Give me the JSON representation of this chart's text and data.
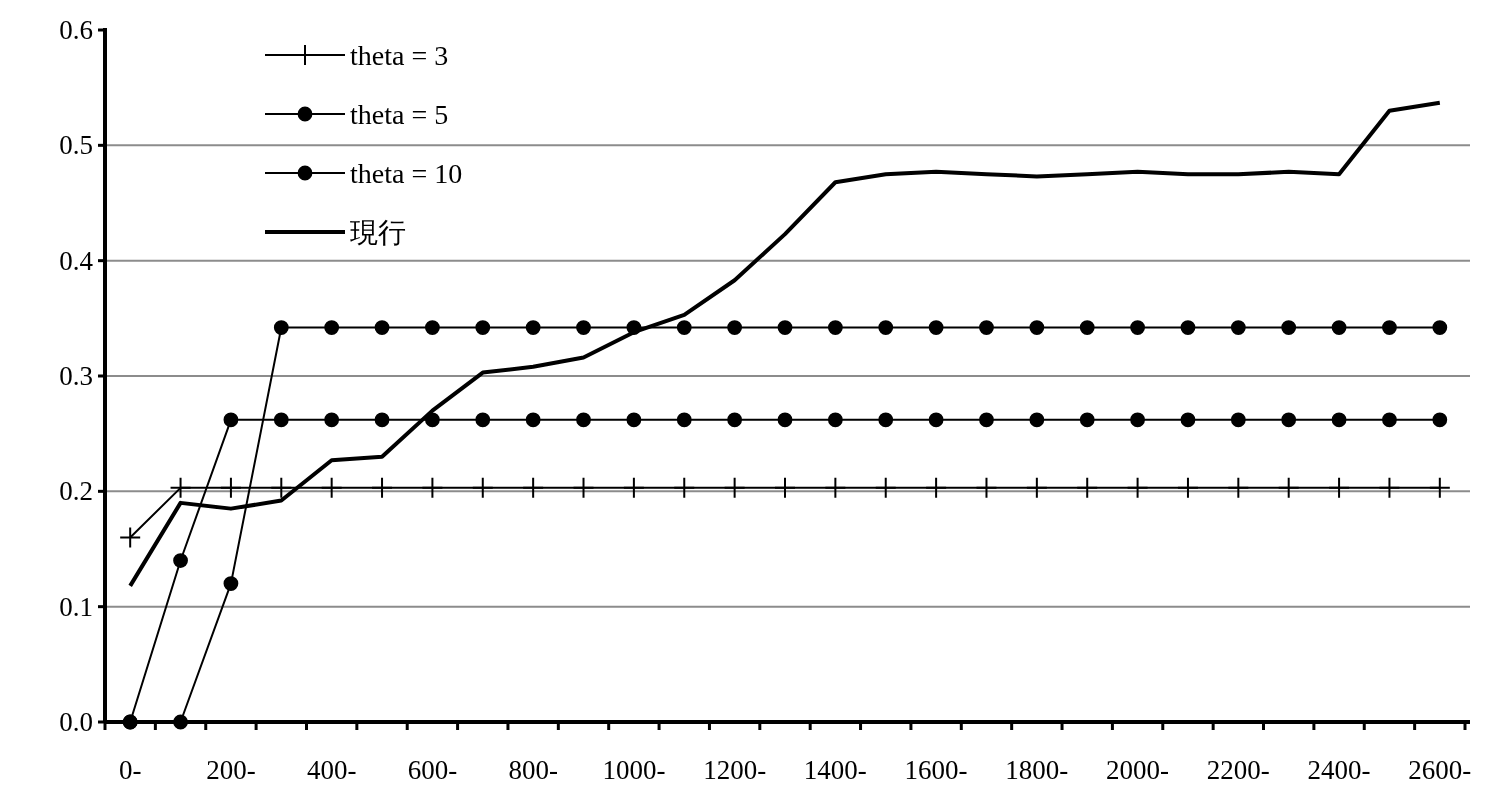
{
  "chart_data": {
    "type": "line",
    "categories": [
      "0-",
      null,
      "200-",
      null,
      "400-",
      null,
      "600-",
      null,
      "800-",
      null,
      "1000-",
      null,
      "1200-",
      null,
      "1400-",
      null,
      "1600-",
      null,
      "1800-",
      null,
      "2000-",
      null,
      "2200-",
      null,
      "2400-",
      null,
      "2600-"
    ],
    "series": [
      {
        "name": "theta = 3",
        "color": "#000000",
        "marker": "cross",
        "values": [
          0.16,
          0.203,
          0.203,
          0.203,
          0.203,
          0.203,
          0.203,
          0.203,
          0.203,
          0.203,
          0.203,
          0.203,
          0.203,
          0.203,
          0.203,
          0.203,
          0.203,
          0.203,
          0.203,
          0.203,
          0.203,
          0.203,
          0.203,
          0.203,
          0.203,
          0.203,
          0.203
        ]
      },
      {
        "name": "theta = 5",
        "color": "#000000",
        "marker": "circle",
        "values": [
          0,
          0.14,
          0.262,
          0.262,
          0.262,
          0.262,
          0.262,
          0.262,
          0.262,
          0.262,
          0.262,
          0.262,
          0.262,
          0.262,
          0.262,
          0.262,
          0.262,
          0.262,
          0.262,
          0.262,
          0.262,
          0.262,
          0.262,
          0.262,
          0.262,
          0.262,
          0.262
        ]
      },
      {
        "name": "theta = 10",
        "color": "#000000",
        "marker": "circle",
        "values": [
          0,
          0,
          0.12,
          0.342,
          0.342,
          0.342,
          0.342,
          0.342,
          0.342,
          0.342,
          0.342,
          0.342,
          0.342,
          0.342,
          0.342,
          0.342,
          0.342,
          0.342,
          0.342,
          0.342,
          0.342,
          0.342,
          0.342,
          0.342,
          0.342,
          0.342,
          0.342
        ]
      },
      {
        "name": "現行",
        "color": "#000000",
        "marker": "none",
        "values": [
          0.118,
          0.19,
          0.185,
          0.192,
          0.227,
          0.23,
          0.27,
          0.303,
          0.308,
          0.316,
          0.338,
          0.353,
          0.383,
          0.423,
          0.468,
          0.475,
          0.477,
          0.475,
          0.473,
          0.475,
          0.477,
          0.475,
          0.475,
          0.477,
          0.475,
          0.53,
          0.537
        ]
      }
    ],
    "ylim": [
      0,
      0.6
    ],
    "yticks": [
      {
        "value": 0,
        "label": "0.0"
      },
      0.1,
      0.2,
      0.3,
      0.4,
      0.5,
      0.6
    ],
    "grid": "y",
    "legend": "top left"
  }
}
